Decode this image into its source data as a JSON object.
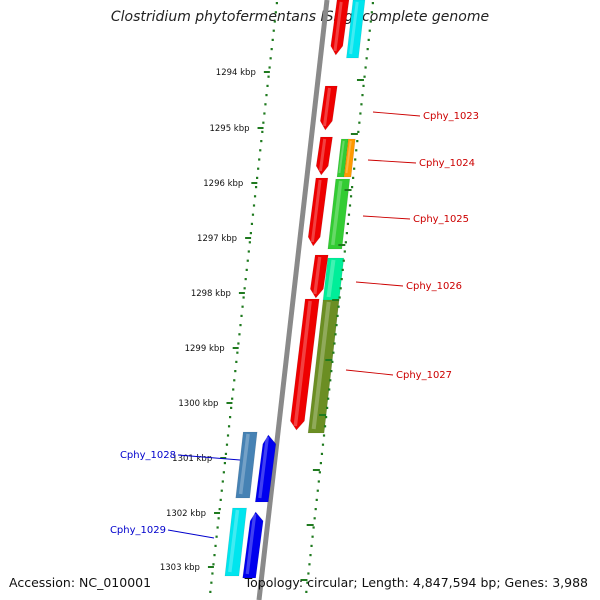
{
  "title": "Clostridium phytofermentans ISDg, complete genome",
  "footer": {
    "accession": "Accession: NC_010001",
    "summary": "Topology: circular; Length: 4,847,594 bp; Genes: 3,988"
  },
  "colors": {
    "backbone": "#8a8a8a",
    "tick": "#1f7a1f",
    "forward_label": "#cc0000",
    "reverse_label": "#0000cc"
  },
  "scale": {
    "unit": "kbp",
    "labels": [
      "1294 kbp",
      "1295 kbp",
      "1296 kbp",
      "1297 kbp",
      "1298 kbp",
      "1299 kbp",
      "1300 kbp",
      "1301 kbp",
      "1302 kbp",
      "1303 kbp"
    ]
  },
  "gene_labels": [
    {
      "name": "Cphy_1023",
      "strand": "forward"
    },
    {
      "name": "Cphy_1024",
      "strand": "forward"
    },
    {
      "name": "Cphy_1025",
      "strand": "forward"
    },
    {
      "name": "Cphy_1026",
      "strand": "forward"
    },
    {
      "name": "Cphy_1027",
      "strand": "forward"
    },
    {
      "name": "Cphy_1028",
      "strand": "reverse"
    },
    {
      "name": "Cphy_1029",
      "strand": "reverse"
    }
  ],
  "feature_colors": {
    "cds_forward": "#ee0000",
    "cds_reverse": "#0000ee",
    "cog_cyan": "#00e5ee",
    "cog_green": "#33cc33",
    "cog_orange": "#ff9900",
    "cog_teal": "#00ee99",
    "cog_olive": "#6b8e23",
    "cog_steel": "#4682b4"
  }
}
